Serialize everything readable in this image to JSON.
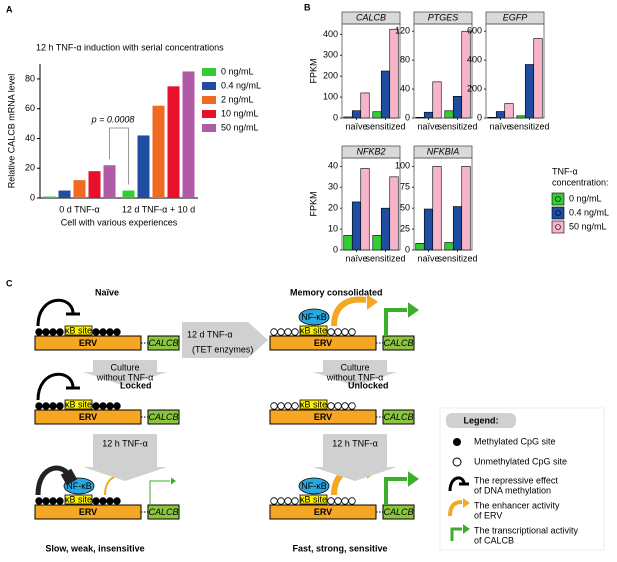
{
  "panel_labels": [
    "A",
    "B",
    "C"
  ],
  "chart_data": [
    {
      "type": "bar",
      "title": "12 h TNF-α induction with serial concentrations",
      "ylabel": "Relative CALCB mRNA level",
      "xlabel": "Cell with various experiences",
      "categories": [
        "0 d TNF-α",
        "12 d TNF-α + 10 d"
      ],
      "series": [
        {
          "name": "0 ng/mL",
          "color": "#33cc33",
          "values": [
            1,
            5
          ]
        },
        {
          "name": "0.4 ng/mL",
          "color": "#1f4ea0",
          "values": [
            5,
            42
          ]
        },
        {
          "name": "2 ng/mL",
          "color": "#f06a22",
          "values": [
            12,
            62
          ]
        },
        {
          "name": "10 ng/mL",
          "color": "#e8102a",
          "values": [
            18,
            75
          ]
        },
        {
          "name": "50 ng/mL",
          "color": "#b05aa8",
          "values": [
            22,
            85
          ]
        }
      ],
      "ylim": [
        0,
        90
      ],
      "yticks": [
        0,
        20,
        40,
        60,
        80
      ],
      "annotation": "p = 0.0008"
    },
    {
      "type": "bar",
      "title": "CALCB",
      "ylabel": "FPKM",
      "categories": [
        "naïve",
        "sensitized"
      ],
      "series": [
        {
          "name": "0 ng/mL",
          "color": "#33cc33",
          "values": [
            5,
            30
          ]
        },
        {
          "name": "0.4 ng/mL",
          "color": "#1f4ea0",
          "values": [
            35,
            225
          ]
        },
        {
          "name": "50 ng/mL",
          "color": "#f8b4c8",
          "values": [
            120,
            425
          ]
        }
      ],
      "ylim": [
        0,
        450
      ],
      "yticks": [
        0,
        100,
        200,
        300,
        400
      ],
      "legend_title": [
        "TNF-α",
        "concentration:"
      ]
    },
    {
      "type": "bar",
      "title": "PTGES",
      "categories": [
        "naïve",
        "sensitized"
      ],
      "series": [
        {
          "color": "#33cc33",
          "values": [
            1,
            10
          ]
        },
        {
          "color": "#1f4ea0",
          "values": [
            8,
            30
          ]
        },
        {
          "color": "#f8b4c8",
          "values": [
            50,
            120
          ]
        }
      ],
      "ylim": [
        0,
        130
      ],
      "yticks": [
        0,
        40,
        80,
        120
      ]
    },
    {
      "type": "bar",
      "title": "EGFP",
      "categories": [
        "naïve",
        "sensitized"
      ],
      "series": [
        {
          "color": "#33cc33",
          "values": [
            5,
            15
          ]
        },
        {
          "color": "#1f4ea0",
          "values": [
            45,
            370
          ]
        },
        {
          "color": "#f8b4c8",
          "values": [
            100,
            550
          ]
        }
      ],
      "ylim": [
        0,
        650
      ],
      "yticks": [
        0,
        200,
        400,
        600
      ]
    },
    {
      "type": "bar",
      "title": "NFKB2",
      "ylabel": "FPKM",
      "categories": [
        "naïve",
        "sensitized"
      ],
      "series": [
        {
          "color": "#33cc33",
          "values": [
            7,
            7
          ]
        },
        {
          "color": "#1f4ea0",
          "values": [
            23,
            20
          ]
        },
        {
          "color": "#f8b4c8",
          "values": [
            39,
            35
          ]
        }
      ],
      "ylim": [
        0,
        44
      ],
      "yticks": [
        0,
        10,
        20,
        30,
        40
      ]
    },
    {
      "type": "bar",
      "title": "NFKBIA",
      "categories": [
        "naïve",
        "sensitized"
      ],
      "series": [
        {
          "color": "#33cc33",
          "values": [
            8,
            9
          ]
        },
        {
          "color": "#1f4ea0",
          "values": [
            49,
            52
          ]
        },
        {
          "color": "#f8b4c8",
          "values": [
            100,
            100
          ]
        }
      ],
      "ylim": [
        0,
        110
      ],
      "yticks": [
        0,
        25,
        50,
        75,
        100
      ]
    }
  ],
  "diagram": {
    "columns": [
      {
        "title": "Naïve",
        "state": "Locked",
        "outcome": "Slow, weak, insensitive",
        "steps": [
          [
            "Culture",
            "without TNF-α"
          ],
          [
            "12 h TNF-α"
          ]
        ],
        "rows": [
          {
            "erv": "ERV",
            "gene": "CALCB",
            "site": "κB site"
          },
          {
            "erv": "ERV",
            "gene": "CALCB",
            "site": "κB site"
          },
          {
            "erv": "ERV",
            "gene": "CALCB",
            "site": "κB site",
            "tf": "NF-κB"
          }
        ]
      },
      {
        "title": "Memory consolidated",
        "state": "Unlocked",
        "outcome": "Fast, strong, sensitive",
        "steps": [
          [
            "Culture",
            "without TNF-α"
          ],
          [
            "12 h TNF-α"
          ]
        ],
        "rows": [
          {
            "erv": "ERV",
            "gene": "CALCB",
            "site": "κB site",
            "tf": "NF-κB"
          },
          {
            "erv": "ERV",
            "gene": "CALCB",
            "site": "κB site"
          },
          {
            "erv": "ERV",
            "gene": "CALCB",
            "site": "κB site",
            "tf": "NF-κB"
          }
        ]
      }
    ],
    "transition": [
      "12 d TNF-α",
      "(TET enzymes)"
    ],
    "legend": {
      "title": "Legend:",
      "items": [
        [
          "Methylated CpG site"
        ],
        [
          "Unmethylated CpG site"
        ],
        [
          "The repressive effect",
          "of DNA methylation"
        ],
        [
          "The enhancer activity",
          "of ERV"
        ],
        [
          "The transcriptional activity",
          "of CALCB"
        ]
      ]
    }
  }
}
